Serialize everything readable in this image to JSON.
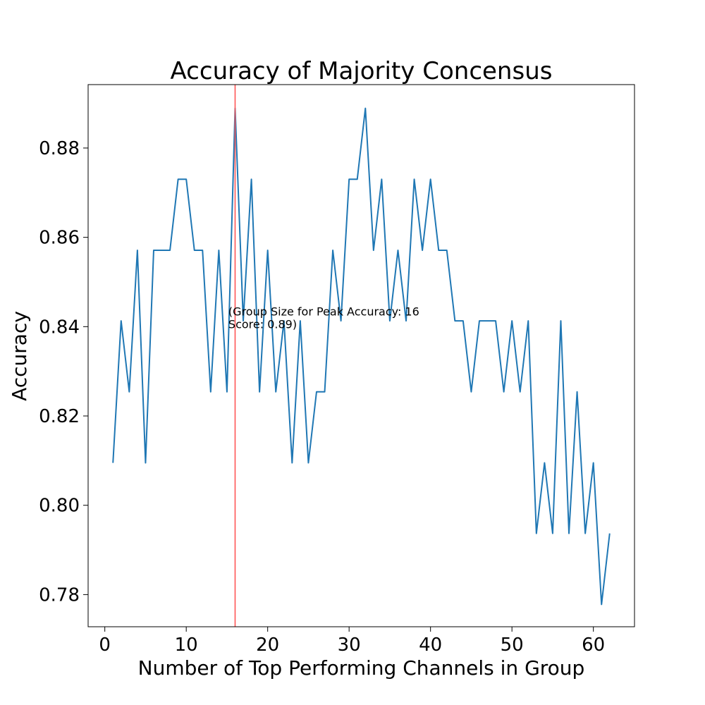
{
  "chart_data": {
    "type": "line",
    "title": "Accuracy of Majority Concensus",
    "xlabel": "Number of Top Performing Channels in Group",
    "ylabel": "Accuracy",
    "xlim": [
      -2.05,
      65.05
    ],
    "ylim": [
      0.7728,
      0.8942
    ],
    "xticks": [
      0,
      10,
      20,
      30,
      40,
      50,
      60
    ],
    "xtick_labels": [
      "0",
      "10",
      "20",
      "30",
      "40",
      "50",
      "60"
    ],
    "yticks": [
      0.78,
      0.8,
      0.82,
      0.84,
      0.86,
      0.88
    ],
    "ytick_labels": [
      "0.78",
      "0.80",
      "0.82",
      "0.84",
      "0.86",
      "0.88"
    ],
    "grid": false,
    "series": [
      {
        "color": "#1f77b4",
        "x": [
          1,
          2,
          3,
          4,
          5,
          6,
          7,
          8,
          9,
          10,
          11,
          12,
          13,
          14,
          15,
          16,
          17,
          18,
          19,
          20,
          21,
          22,
          23,
          24,
          25,
          26,
          27,
          28,
          29,
          30,
          31,
          32,
          33,
          34,
          35,
          36,
          37,
          38,
          39,
          40,
          41,
          42,
          43,
          44,
          45,
          46,
          47,
          48,
          49,
          50,
          51,
          52,
          53,
          54,
          55,
          56,
          57,
          58,
          59,
          60,
          61,
          62
        ],
        "y": [
          0.8095,
          0.8413,
          0.8254,
          0.8571,
          0.8095,
          0.8571,
          0.8571,
          0.8571,
          0.873,
          0.873,
          0.8571,
          0.8571,
          0.8254,
          0.8571,
          0.8254,
          0.8889,
          0.8413,
          0.873,
          0.8254,
          0.8571,
          0.8254,
          0.8413,
          0.8095,
          0.8413,
          0.8095,
          0.8254,
          0.8254,
          0.8571,
          0.8413,
          0.873,
          0.873,
          0.8889,
          0.8571,
          0.873,
          0.8413,
          0.8571,
          0.8413,
          0.873,
          0.8571,
          0.873,
          0.8571,
          0.8571,
          0.8413,
          0.8413,
          0.8254,
          0.8413,
          0.8413,
          0.8413,
          0.8254,
          0.8413,
          0.8254,
          0.8413,
          0.7937,
          0.8095,
          0.7937,
          0.8413,
          0.7937,
          0.8254,
          0.7937,
          0.8095,
          0.7778,
          0.7937
        ]
      }
    ],
    "vline": {
      "x": 16,
      "color": "#ff5555"
    },
    "annotation": {
      "x": 15,
      "y": 0.84,
      "lines": [
        "(Group Size for Peak Accuracy: 16",
        "Score: 0.89)"
      ]
    }
  }
}
